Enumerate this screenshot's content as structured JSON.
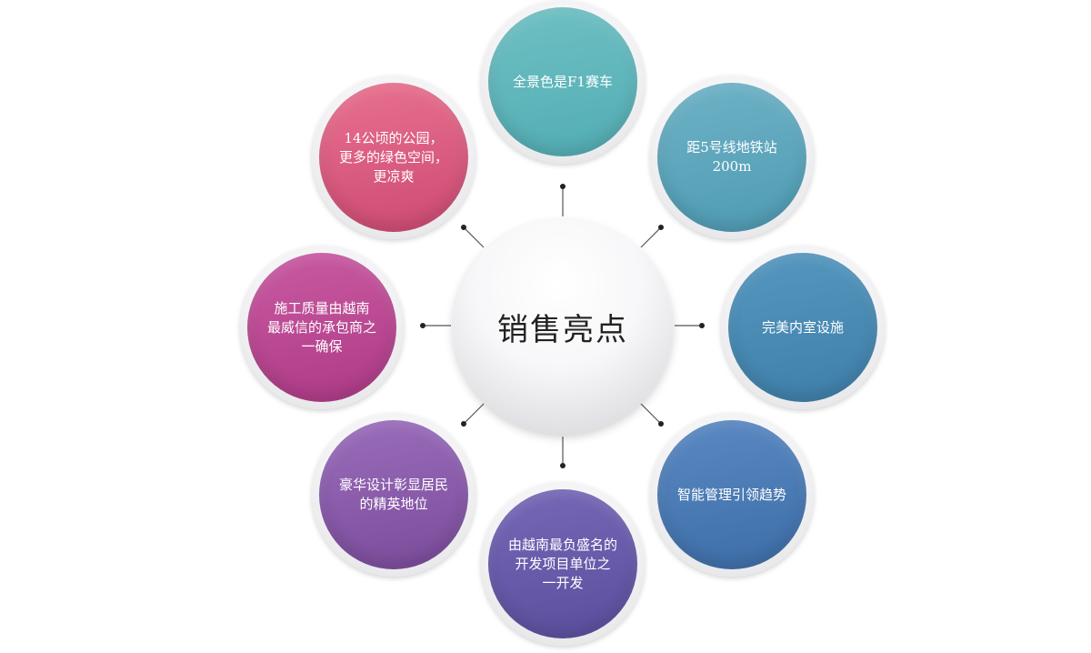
{
  "diagram": {
    "center": {
      "label": "销售亮点"
    },
    "nodes": [
      {
        "key": "top",
        "label": "全景色是F1赛车",
        "gradient": [
          "#52adb4",
          "#6fc0c3"
        ]
      },
      {
        "key": "upper-right",
        "label": "距5号线地铁站200m",
        "gradient": [
          "#4f9bb3",
          "#6eb2c6"
        ]
      },
      {
        "key": "right",
        "label": "完美内室设施",
        "gradient": [
          "#3e7fa9",
          "#5597bf"
        ]
      },
      {
        "key": "lower-right",
        "label": "智能管理引领趋势",
        "gradient": [
          "#3d6ea8",
          "#5a88c2"
        ]
      },
      {
        "key": "bottom",
        "label": "由越南最负盛名的\n开发项目单位之\n一开发",
        "gradient": [
          "#5a4f9d",
          "#7767b7"
        ]
      },
      {
        "key": "lower-left",
        "label": "豪华设计彰显居民\n的精英地位",
        "gradient": [
          "#7a4b9a",
          "#9a6dbb"
        ]
      },
      {
        "key": "left",
        "label": "施工质量由越南\n最威信的承包商之\n一确保",
        "gradient": [
          "#ad3a86",
          "#c95aa1"
        ]
      },
      {
        "key": "upper-left",
        "label": "14公顷的公园，\n更多的绿色空间，\n更凉爽",
        "gradient": [
          "#cd4a73",
          "#e8718f"
        ]
      }
    ]
  }
}
